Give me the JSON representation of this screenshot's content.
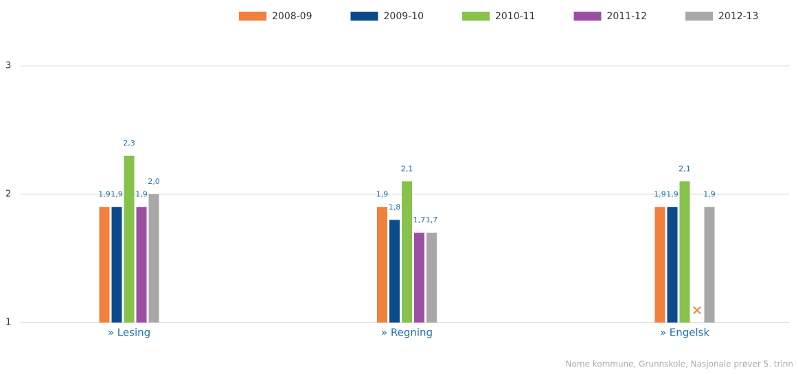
{
  "chart_data": {
    "type": "bar",
    "categories": [
      "» Lesing",
      "» Regning",
      "» Engelsk"
    ],
    "series": [
      {
        "name": "2008-09",
        "color": "#f0803c",
        "values": [
          1.9,
          1.9,
          1.9
        ],
        "value_labels": [
          "1,9",
          "1,9",
          "1,9"
        ]
      },
      {
        "name": "2009-10",
        "color": "#0c4a8c",
        "values": [
          1.9,
          1.8,
          1.9
        ],
        "value_labels": [
          "1,9",
          "1,8",
          "1,9"
        ]
      },
      {
        "name": "2010-11",
        "color": "#86c24c",
        "values": [
          2.3,
          2.1,
          2.1
        ],
        "value_labels": [
          "2,3",
          "2,1",
          "2,1"
        ]
      },
      {
        "name": "2011-12",
        "color": "#9b4fa3",
        "values": [
          1.9,
          1.7,
          null
        ],
        "value_labels": [
          "1,9",
          "1,7",
          null
        ]
      },
      {
        "name": "2012-13",
        "color": "#a8a8a8",
        "values": [
          2.0,
          1.7,
          1.9
        ],
        "value_labels": [
          "2,0",
          "1,7",
          "1,9"
        ]
      }
    ],
    "ylim": [
      1,
      3
    ],
    "yticks": [
      1,
      2,
      3
    ],
    "grid": true,
    "legend": "top-right",
    "source": "Nome kommune, Grunnskole, Nasjonale prøver 5. trinn"
  }
}
